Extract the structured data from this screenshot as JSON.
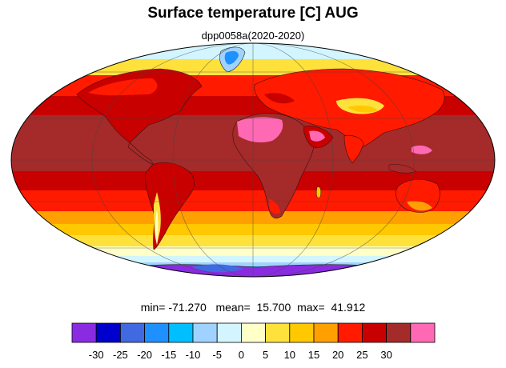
{
  "title": "Surface temperature [C] AUG",
  "subtitle": "dpp0058a(2020-2020)",
  "stats": {
    "min_label": "min=",
    "min_value": "-71.270",
    "mean_label": "mean=",
    "mean_value": "15.700",
    "max_label": "max=",
    "max_value": "41.912"
  },
  "projection": "mollweide",
  "colorbar": {
    "colors": [
      "#8a2be2",
      "#0000cd",
      "#4169e1",
      "#1e90ff",
      "#00bfff",
      "#a0d2ff",
      "#d2f5ff",
      "#ffffc8",
      "#ffe13c",
      "#ffc800",
      "#ffa000",
      "#ff1a00",
      "#c80000",
      "#a52a2a",
      "#ff69b4"
    ],
    "tick_labels": [
      "-30",
      "-25",
      "-20",
      "-15",
      "-10",
      "-5",
      "0",
      "5",
      "10",
      "15",
      "20",
      "25",
      "30"
    ]
  }
}
